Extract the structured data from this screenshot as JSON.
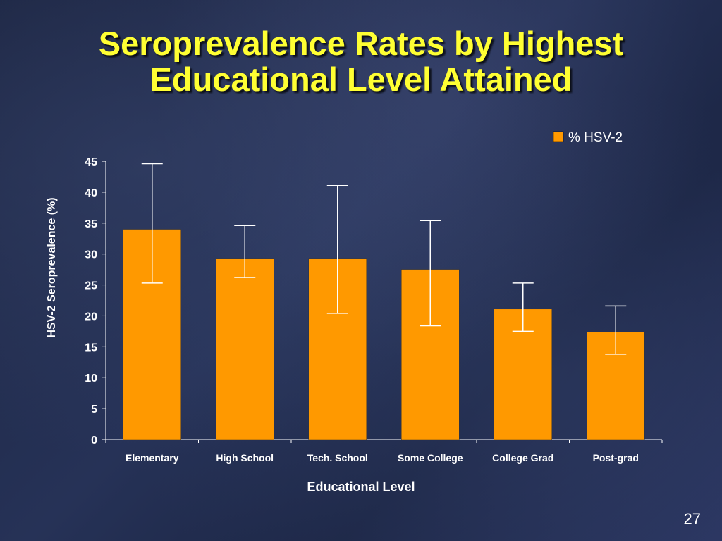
{
  "slide": {
    "title_line1": "Seroprevalence Rates by Highest",
    "title_line2": "Educational Level Attained",
    "page_number": "27"
  },
  "colors": {
    "bar": "#ff9900",
    "title": "#ffff33",
    "text": "#ffffff"
  },
  "chart_data": {
    "type": "bar",
    "categories": [
      "Elementary",
      "High School",
      "Tech. School",
      "Some College",
      "College Grad",
      "Post-grad"
    ],
    "series": [
      {
        "name": "% HSV-2",
        "values": [
          34,
          29.3,
          29.3,
          27.5,
          21.1,
          17.4
        ],
        "error_low": [
          25.3,
          26.2,
          20.4,
          18.4,
          17.5,
          13.8
        ],
        "error_high": [
          44.6,
          34.6,
          41.1,
          35.4,
          25.3,
          21.6
        ]
      }
    ],
    "xlabel": "Educational Level",
    "ylabel": "HSV-2 Seroprevalence  (%)",
    "ylim": [
      0,
      45
    ],
    "yticks": [
      "0",
      "5",
      "10",
      "15",
      "20",
      "25",
      "30",
      "35",
      "40",
      "45"
    ],
    "grid": false,
    "legend": "top-right"
  }
}
